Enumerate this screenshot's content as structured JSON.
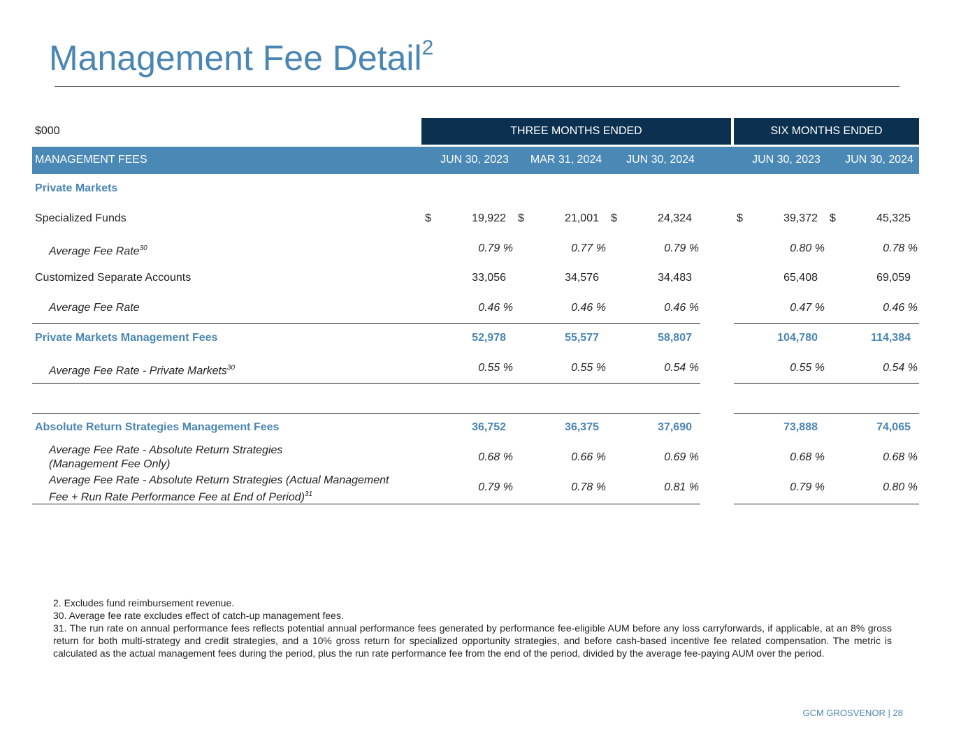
{
  "header": {
    "title": "Management Fee Detail",
    "title_sup": "2"
  },
  "table": {
    "unit": "$000",
    "group_headers": [
      "THREE MONTHS ENDED",
      "SIX MONTHS ENDED"
    ],
    "section_label": "MANAGEMENT FEES",
    "columns": [
      "JUN 30, 2023",
      "MAR 31, 2024",
      "JUN 30, 2024",
      "JUN 30, 2023",
      "JUN 30, 2024"
    ],
    "rows": [
      {
        "kind": "section",
        "label": [
          "Private Markets"
        ]
      },
      {
        "kind": "value",
        "label": [
          "Specialized Funds"
        ],
        "currency": "$",
        "cells": [
          "19,922",
          "21,001",
          "24,324",
          "39,372",
          "45,325"
        ]
      },
      {
        "kind": "rate",
        "label": [
          "Average Fee Rate"
        ],
        "sup": "30",
        "cells": [
          "0.79 %",
          "0.77 %",
          "0.79 %",
          "0.80 %",
          "0.78 %"
        ]
      },
      {
        "kind": "value",
        "label": [
          "Customized Separate Accounts"
        ],
        "cells": [
          "33,056",
          "34,576",
          "34,483",
          "65,408",
          "69,059"
        ]
      },
      {
        "kind": "rate",
        "label": [
          "Average Fee Rate"
        ],
        "cells": [
          "0.46 %",
          "0.46 %",
          "0.46 %",
          "0.47 %",
          "0.46 %"
        ]
      },
      {
        "kind": "total",
        "label": [
          "Private Markets Management Fees"
        ],
        "cells": [
          "52,978",
          "55,577",
          "58,807",
          "104,780",
          "114,384"
        ]
      },
      {
        "kind": "rate",
        "label": [
          "Average Fee Rate - Private Markets"
        ],
        "sup": "30",
        "cells": [
          "0.55 %",
          "0.55 %",
          "0.54 %",
          "0.55 %",
          "0.54 %"
        ]
      },
      {
        "kind": "blank"
      },
      {
        "kind": "total",
        "label": [
          "Absolute Return Strategies Management Fees"
        ],
        "cells": [
          "36,752",
          "36,375",
          "37,690",
          "73,888",
          "74,065"
        ]
      },
      {
        "kind": "rate",
        "label": [
          "Average Fee Rate - Absolute Return Strategies",
          "(Management Fee Only)"
        ],
        "cells": [
          "0.68 %",
          "0.66 %",
          "0.69 %",
          "0.68 %",
          "0.68 %"
        ]
      },
      {
        "kind": "rate",
        "label": [
          "Average Fee Rate - Absolute Return Strategies (Actual Management",
          "Fee + Run Rate Performance Fee at End of Period)"
        ],
        "sup": "31",
        "cells": [
          "0.79 %",
          "0.78 %",
          "0.81 %",
          "0.79 %",
          "0.80 %"
        ]
      }
    ]
  },
  "footnotes": [
    "2.   Excludes fund reimbursement revenue.",
    "30. Average fee rate excludes effect of catch-up management fees.",
    "31. The run rate on annual performance fees reflects potential annual performance fees generated by performance fee-eligible AUM before any loss carryforwards, if applicable, at an 8% gross return for both multi-strategy and credit strategies, and a 10% gross return for specialized opportunity strategies, and before cash-based incentive fee related compensation. The metric is calculated as the actual management fees during the period, plus the run rate performance fee from the end of the period, divided by the average fee-paying AUM over the period."
  ],
  "footer": "GCM GROSVENOR | 28"
}
